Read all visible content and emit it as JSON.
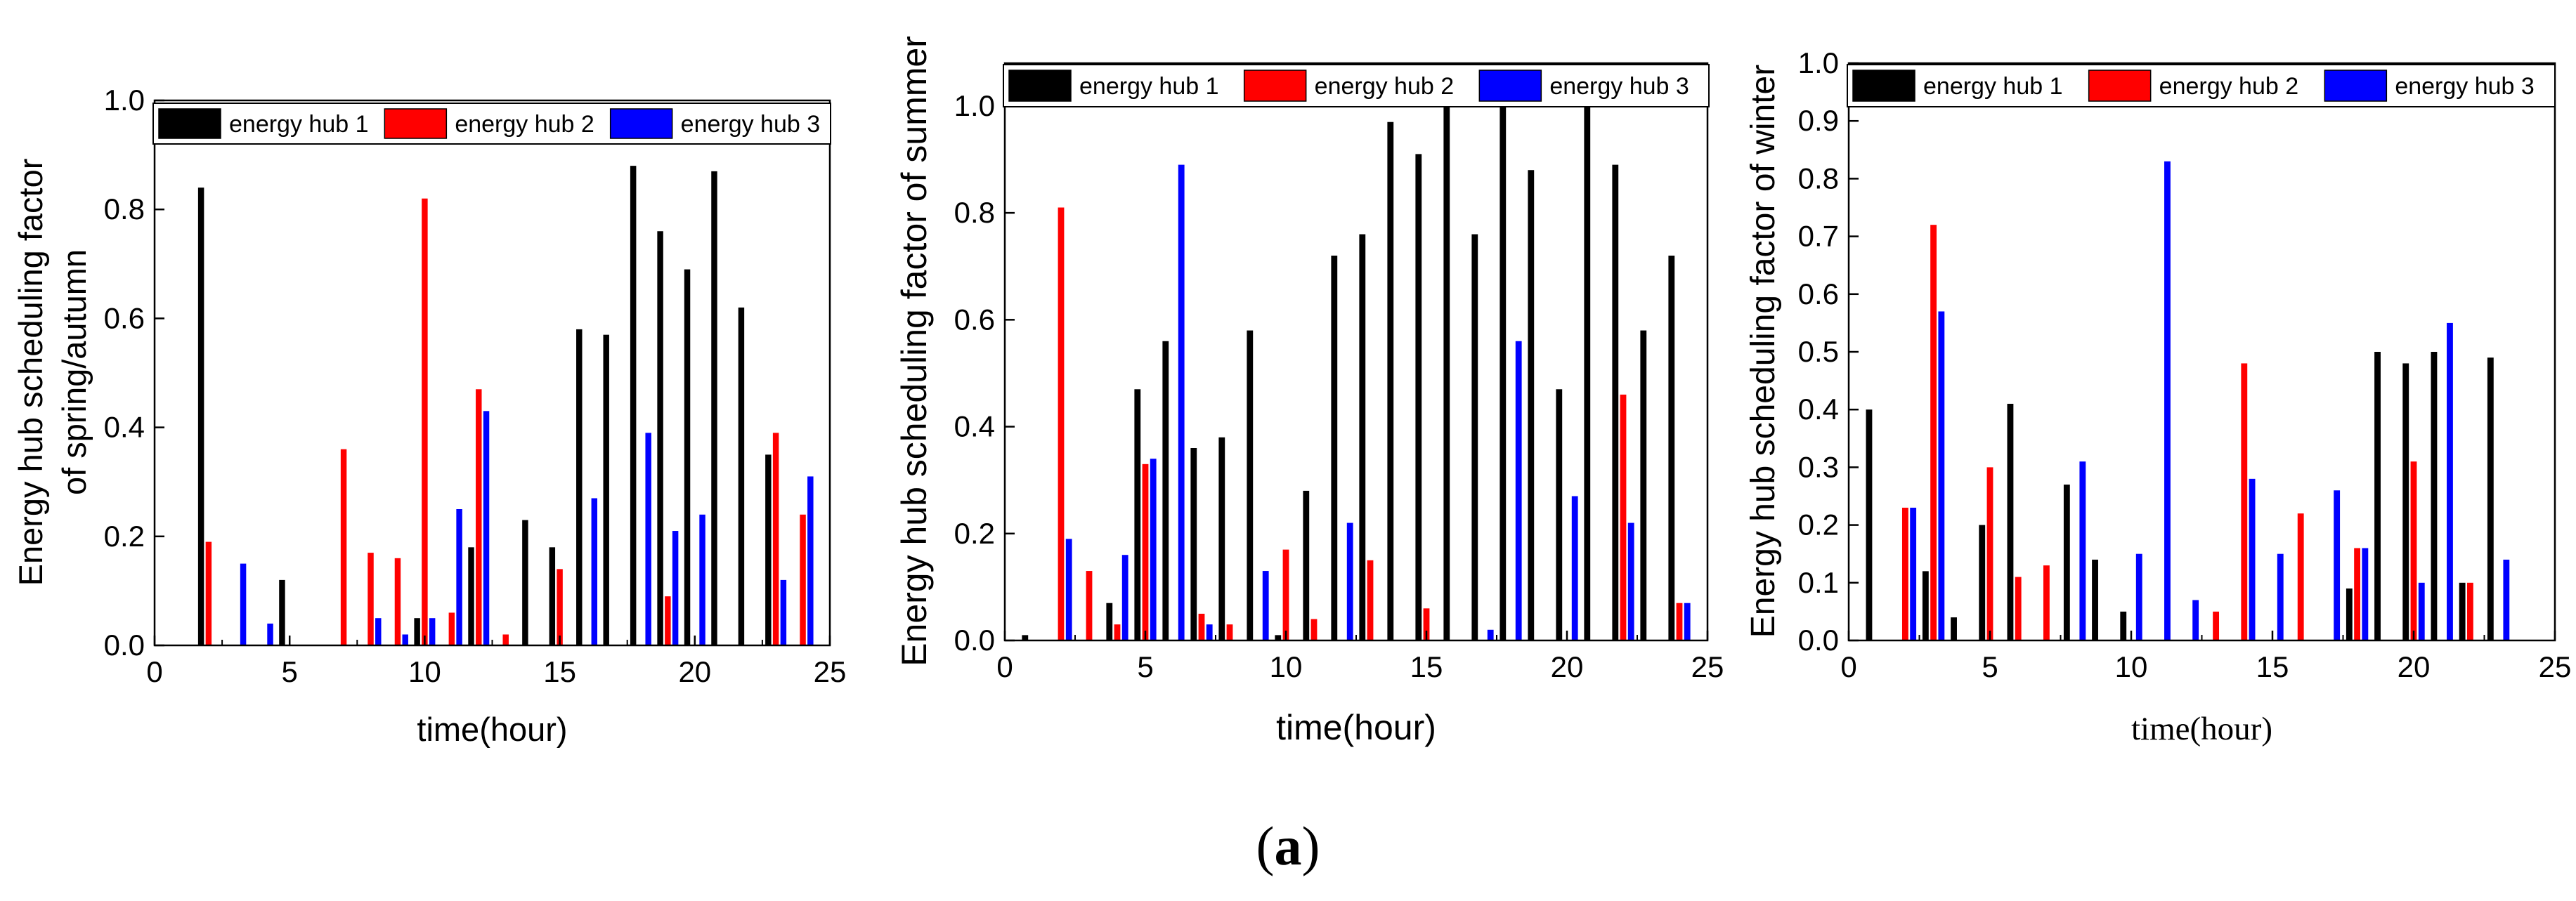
{
  "caption": {
    "open": "(",
    "letter": "a",
    "close": ")"
  },
  "legend": [
    "energy hub 1",
    "energy hub 2",
    "energy hub 3"
  ],
  "colors": {
    "hub1": "#000000",
    "hub2": "#ff0000",
    "hub3": "#0000ff"
  },
  "chart_data": [
    {
      "type": "bar",
      "title": "",
      "xlabel": "time(hour)",
      "ylabel": [
        "Energy hub scheduling factor",
        "of spring/autumn"
      ],
      "xlim": [
        0,
        25
      ],
      "ylim": [
        0,
        1.0
      ],
      "xticks": [
        0,
        5,
        10,
        15,
        20,
        25
      ],
      "yticks": [
        0.0,
        0.2,
        0.4,
        0.6,
        0.8,
        1.0
      ],
      "ytick_labels": [
        "0.0",
        "0.2",
        "0.4",
        "0.6",
        "0.8",
        "1.0"
      ],
      "legend_position": "top",
      "categories": [
        1,
        2,
        3,
        4,
        5,
        6,
        7,
        8,
        9,
        10,
        11,
        12,
        13,
        14,
        15,
        16,
        17,
        18,
        19,
        20,
        21,
        22,
        23,
        24
      ],
      "series": [
        {
          "name": "energy hub 1",
          "values": [
            0.0,
            0.84,
            0.0,
            0.0,
            0.12,
            0.0,
            0.0,
            0.0,
            0.0,
            0.05,
            0.0,
            0.18,
            0.0,
            0.23,
            0.18,
            0.58,
            0.57,
            0.88,
            0.76,
            0.69,
            0.87,
            0.62,
            0.35,
            0.0
          ]
        },
        {
          "name": "energy hub 2",
          "values": [
            0.0,
            0.19,
            0.0,
            0.0,
            0.0,
            0.0,
            0.36,
            0.17,
            0.16,
            0.82,
            0.06,
            0.47,
            0.02,
            0.0,
            0.14,
            0.0,
            0.0,
            0.0,
            0.09,
            0.0,
            0.0,
            0.0,
            0.39,
            0.24
          ]
        },
        {
          "name": "energy hub 3",
          "values": [
            0.0,
            0.0,
            0.15,
            0.04,
            0.0,
            0.0,
            0.0,
            0.05,
            0.02,
            0.05,
            0.25,
            0.43,
            0.0,
            0.0,
            0.0,
            0.27,
            0.0,
            0.39,
            0.21,
            0.24,
            0.0,
            0.0,
            0.12,
            0.31
          ]
        }
      ]
    },
    {
      "type": "bar",
      "title": "",
      "xlabel": "time(hour)",
      "ylabel": [
        "Energy hub scheduling factor of summer"
      ],
      "xlim": [
        0,
        25
      ],
      "ylim": [
        0,
        1.08
      ],
      "xticks": [
        0,
        5,
        10,
        15,
        20,
        25
      ],
      "yticks": [
        0.0,
        0.2,
        0.4,
        0.6,
        0.8,
        1.0
      ],
      "ytick_labels": [
        "0.0",
        "0.2",
        "0.4",
        "0.6",
        "0.8",
        "1.0"
      ],
      "legend_position": "top",
      "categories": [
        1,
        2,
        3,
        4,
        5,
        6,
        7,
        8,
        9,
        10,
        11,
        12,
        13,
        14,
        15,
        16,
        17,
        18,
        19,
        20,
        21,
        22,
        23,
        24
      ],
      "series": [
        {
          "name": "energy hub 1",
          "values": [
            0.01,
            0.0,
            0.0,
            0.07,
            0.47,
            0.56,
            0.36,
            0.38,
            0.58,
            0.01,
            0.28,
            0.72,
            0.76,
            0.97,
            0.91,
            1.0,
            0.76,
            1.0,
            0.88,
            0.47,
            1.0,
            0.89,
            0.58,
            0.72
          ]
        },
        {
          "name": "energy hub 2",
          "values": [
            0.0,
            0.81,
            0.13,
            0.03,
            0.33,
            0.0,
            0.05,
            0.03,
            0.0,
            0.17,
            0.04,
            0.0,
            0.15,
            0.0,
            0.06,
            0.0,
            0.0,
            0.0,
            0.0,
            0.0,
            0.0,
            0.46,
            0.0,
            0.07
          ]
        },
        {
          "name": "energy hub 3",
          "values": [
            0.0,
            0.19,
            0.0,
            0.16,
            0.34,
            0.89,
            0.03,
            0.0,
            0.13,
            0.0,
            0.0,
            0.22,
            0.0,
            0.0,
            0.0,
            0.0,
            0.02,
            0.56,
            0.0,
            0.27,
            0.0,
            0.22,
            0.0,
            0.07
          ]
        }
      ]
    },
    {
      "type": "bar",
      "title": "",
      "xlabel": "time(hour)",
      "ylabel": [
        "Energy hub scheduling factor of winter"
      ],
      "xlim": [
        0,
        25
      ],
      "ylim": [
        0,
        1.0
      ],
      "xticks": [
        0,
        5,
        10,
        15,
        20,
        25
      ],
      "yticks": [
        0.0,
        0.1,
        0.2,
        0.3,
        0.4,
        0.5,
        0.6,
        0.7,
        0.8,
        0.9,
        1.0
      ],
      "ytick_labels": [
        "0.0",
        "0.1",
        "0.2",
        "0.3",
        "0.4",
        "0.5",
        "0.6",
        "0.7",
        "0.8",
        "0.9",
        "1.0"
      ],
      "legend_position": "top",
      "categories": [
        1,
        2,
        3,
        4,
        5,
        6,
        7,
        8,
        9,
        10,
        11,
        12,
        13,
        14,
        15,
        16,
        17,
        18,
        19,
        20,
        21,
        22,
        23,
        24
      ],
      "series": [
        {
          "name": "energy hub 1",
          "values": [
            0.4,
            0.0,
            0.12,
            0.04,
            0.2,
            0.41,
            0.0,
            0.27,
            0.14,
            0.05,
            0.0,
            0.0,
            0.0,
            0.0,
            0.0,
            0.0,
            0.0,
            0.09,
            0.5,
            0.48,
            0.5,
            0.1,
            0.49,
            0.0
          ]
        },
        {
          "name": "energy hub 2",
          "values": [
            0.0,
            0.23,
            0.72,
            0.0,
            0.3,
            0.11,
            0.13,
            0.0,
            0.0,
            0.0,
            0.0,
            0.0,
            0.05,
            0.48,
            0.0,
            0.22,
            0.0,
            0.16,
            0.0,
            0.31,
            0.0,
            0.1,
            0.0,
            0.0
          ]
        },
        {
          "name": "energy hub 3",
          "values": [
            0.0,
            0.23,
            0.57,
            0.0,
            0.0,
            0.0,
            0.0,
            0.31,
            0.0,
            0.15,
            0.83,
            0.07,
            0.0,
            0.28,
            0.15,
            0.0,
            0.26,
            0.16,
            0.0,
            0.1,
            0.55,
            0.0,
            0.14,
            0.0
          ]
        }
      ]
    }
  ]
}
